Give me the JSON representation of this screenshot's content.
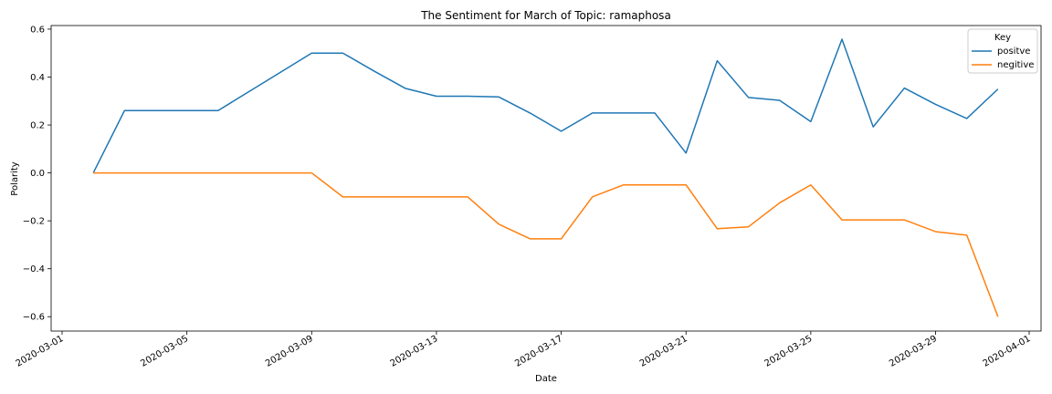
{
  "chart_data": {
    "type": "line",
    "title": "The Sentiment for March of Topic: ramaphosa",
    "xlabel": "Date",
    "ylabel": "Polarity",
    "x": [
      "2020-03-02",
      "2020-03-03",
      "2020-03-04",
      "2020-03-05",
      "2020-03-06",
      "2020-03-07",
      "2020-03-08",
      "2020-03-09",
      "2020-03-10",
      "2020-03-11",
      "2020-03-12",
      "2020-03-13",
      "2020-03-14",
      "2020-03-15",
      "2020-03-16",
      "2020-03-17",
      "2020-03-18",
      "2020-03-19",
      "2020-03-20",
      "2020-03-21",
      "2020-03-22",
      "2020-03-23",
      "2020-03-24",
      "2020-03-25",
      "2020-03-26",
      "2020-03-27",
      "2020-03-28",
      "2020-03-29",
      "2020-03-30",
      "2020-03-31"
    ],
    "series": [
      {
        "name": "positve",
        "color": "#1f77b4",
        "values": [
          0.0,
          0.26,
          0.26,
          0.26,
          0.26,
          0.34,
          0.42,
          0.5,
          0.5,
          0.425,
          0.353,
          0.32,
          0.32,
          0.317,
          0.25,
          0.174,
          0.25,
          0.25,
          0.25,
          0.083,
          0.468,
          0.315,
          0.303,
          0.214,
          0.558,
          0.192,
          0.354,
          0.286,
          0.227,
          0.35
        ]
      },
      {
        "name": "negitive",
        "color": "#ff7f0e",
        "values": [
          0.0,
          0.0,
          0.0,
          0.0,
          0.0,
          0.0,
          0.0,
          0.0,
          -0.1,
          -0.1,
          -0.1,
          -0.1,
          -0.1,
          -0.214,
          -0.275,
          -0.275,
          -0.1,
          -0.05,
          -0.05,
          -0.05,
          -0.233,
          -0.225,
          -0.125,
          -0.05,
          -0.196,
          -0.196,
          -0.196,
          -0.245,
          -0.26,
          -0.6
        ]
      }
    ],
    "xlim": [
      "2020-03-01",
      "2020-04-01"
    ],
    "ylim": [
      -0.66,
      0.615
    ],
    "xticks": [
      "2020-03-01",
      "2020-03-05",
      "2020-03-09",
      "2020-03-13",
      "2020-03-17",
      "2020-03-21",
      "2020-03-25",
      "2020-03-29",
      "2020-04-01"
    ],
    "yticks": [
      -0.6,
      -0.4,
      -0.2,
      0.0,
      0.2,
      0.4,
      0.6
    ],
    "ytick_labels": [
      "−0.6",
      "−0.4",
      "−0.2",
      "0.0",
      "0.2",
      "0.4",
      "0.6"
    ],
    "grid": false,
    "legend": {
      "title": "Key",
      "placement": "top-right"
    }
  }
}
